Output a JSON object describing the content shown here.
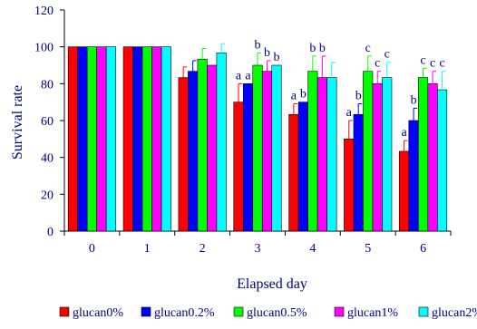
{
  "chart_data": {
    "type": "bar",
    "xlabel": "Elapsed day",
    "ylabel": "Survival rate",
    "ylim": [
      0,
      120
    ],
    "yticks": [
      0,
      20,
      40,
      60,
      80,
      100,
      120
    ],
    "categories": [
      "0",
      "1",
      "2",
      "3",
      "4",
      "5",
      "6"
    ],
    "grid": false,
    "legend_position": "bottom",
    "series": [
      {
        "name": "glucan0%",
        "color": "#ff0000",
        "values": [
          100,
          100,
          83.3,
          70,
          63.3,
          50,
          43.3
        ],
        "errors": [
          0,
          0,
          5.8,
          10,
          5.8,
          10,
          5.8
        ],
        "sig": [
          "",
          "",
          "",
          "a",
          "a",
          "a",
          "a"
        ]
      },
      {
        "name": "glucan0.2%",
        "color": "#0000ff",
        "values": [
          100,
          100,
          86.7,
          80,
          70,
          63.3,
          60
        ],
        "errors": [
          0,
          0,
          5.8,
          0,
          0,
          5.8,
          6.7
        ],
        "sig": [
          "",
          "",
          "",
          "a",
          "b",
          "b",
          "b"
        ]
      },
      {
        "name": "glucan0.5%",
        "color": "#00ff00",
        "values": [
          100,
          100,
          93.3,
          90,
          86.7,
          86.7,
          83.3
        ],
        "errors": [
          0,
          0,
          5.8,
          6.7,
          8.3,
          8.3,
          5
        ],
        "sig": [
          "",
          "",
          "",
          "b",
          "b",
          "c",
          "c"
        ]
      },
      {
        "name": "glucan1%",
        "color": "#ff00ff",
        "values": [
          100,
          100,
          90,
          86.7,
          83.3,
          80,
          80
        ],
        "errors": [
          0,
          0,
          0,
          5.8,
          11.7,
          6.7,
          6.7
        ],
        "sig": [
          "",
          "",
          "",
          "b",
          "b",
          "c",
          "c"
        ]
      },
      {
        "name": "glucan2%",
        "color": "#00ffff",
        "values": [
          100,
          100,
          96.7,
          90,
          83.3,
          83.3,
          76.7
        ],
        "errors": [
          0,
          0,
          5,
          0,
          8.3,
          8.3,
          10
        ],
        "sig": [
          "",
          "",
          "",
          "b",
          "",
          "c",
          "c"
        ]
      }
    ]
  }
}
